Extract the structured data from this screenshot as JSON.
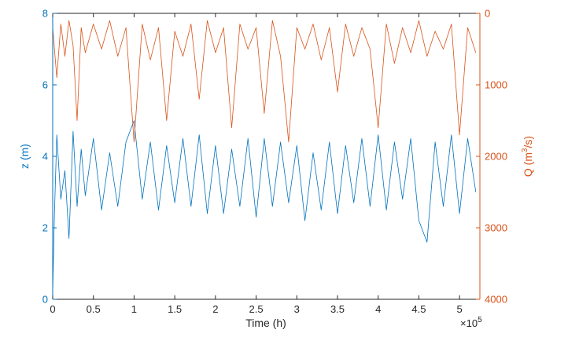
{
  "chart_data": {
    "type": "line",
    "xlabel": "Time (h)",
    "x_exponent_label": "×10",
    "x_exponent_power": "5",
    "xlim": [
      0,
      5.25
    ],
    "x_ticks": [
      0,
      0.5,
      1,
      1.5,
      2,
      2.5,
      3,
      3.5,
      4,
      4.5,
      5
    ],
    "x_tick_labels": [
      "0",
      "0.5",
      "1",
      "1.5",
      "2",
      "2.5",
      "3",
      "3.5",
      "4",
      "4.5",
      "5"
    ],
    "left_axis": {
      "label_main": "z (m)",
      "ylim": [
        0,
        8
      ],
      "ticks": [
        0,
        2,
        4,
        6,
        8
      ],
      "tick_labels": [
        "0",
        "2",
        "4",
        "6",
        "8"
      ],
      "color": "#0072BD"
    },
    "right_axis": {
      "label_pre": "Q (m",
      "label_sup": "3",
      "label_post": "/s)",
      "ylim": [
        0,
        4000
      ],
      "reversed": true,
      "ticks": [
        0,
        1000,
        2000,
        3000,
        4000
      ],
      "tick_labels": [
        "0",
        "1000",
        "2000",
        "3000",
        "4000"
      ],
      "color": "#D95319"
    },
    "series": [
      {
        "axis": "left",
        "color": "#0072BD",
        "x": [
          0,
          0.02,
          0.05,
          0.1,
          0.15,
          0.2,
          0.25,
          0.3,
          0.35,
          0.4,
          0.5,
          0.6,
          0.7,
          0.8,
          0.9,
          1.0,
          1.1,
          1.2,
          1.3,
          1.4,
          1.5,
          1.6,
          1.7,
          1.8,
          1.9,
          2.0,
          2.1,
          2.2,
          2.3,
          2.4,
          2.5,
          2.6,
          2.7,
          2.8,
          2.9,
          3.0,
          3.1,
          3.2,
          3.3,
          3.4,
          3.5,
          3.6,
          3.7,
          3.8,
          3.9,
          4.0,
          4.1,
          4.2,
          4.3,
          4.4,
          4.5,
          4.6,
          4.7,
          4.8,
          4.9,
          5.0,
          5.1,
          5.2
        ],
        "y": [
          0.2,
          2.3,
          4.6,
          2.8,
          3.6,
          1.7,
          4.7,
          2.6,
          4.2,
          2.9,
          4.5,
          2.5,
          4.1,
          2.6,
          4.4,
          5.0,
          2.8,
          4.4,
          2.5,
          4.3,
          2.7,
          4.5,
          2.6,
          4.6,
          2.4,
          4.3,
          2.4,
          4.2,
          2.6,
          4.5,
          2.3,
          4.5,
          2.6,
          4.4,
          2.7,
          4.3,
          2.2,
          4.1,
          2.5,
          4.4,
          2.4,
          4.3,
          2.7,
          4.5,
          2.6,
          4.6,
          2.5,
          4.4,
          2.8,
          4.5,
          2.2,
          1.6,
          4.4,
          2.6,
          4.6,
          2.4,
          4.5,
          3.0
        ]
      },
      {
        "axis": "right",
        "color": "#D95319",
        "x": [
          0,
          0.05,
          0.1,
          0.15,
          0.2,
          0.25,
          0.3,
          0.35,
          0.4,
          0.5,
          0.6,
          0.7,
          0.8,
          0.9,
          1.0,
          1.1,
          1.2,
          1.3,
          1.4,
          1.5,
          1.6,
          1.7,
          1.8,
          1.9,
          2.0,
          2.1,
          2.2,
          2.3,
          2.4,
          2.5,
          2.6,
          2.7,
          2.8,
          2.9,
          3.0,
          3.1,
          3.2,
          3.3,
          3.4,
          3.5,
          3.6,
          3.7,
          3.8,
          3.9,
          4.0,
          4.1,
          4.2,
          4.3,
          4.4,
          4.5,
          4.6,
          4.7,
          4.8,
          4.9,
          5.0,
          5.1,
          5.2
        ],
        "y": [
          200,
          900,
          150,
          600,
          100,
          450,
          1500,
          200,
          550,
          150,
          500,
          100,
          600,
          200,
          1800,
          150,
          650,
          200,
          1500,
          250,
          600,
          150,
          1200,
          100,
          550,
          200,
          1600,
          150,
          500,
          200,
          1400,
          100,
          600,
          1800,
          200,
          500,
          150,
          650,
          200,
          1100,
          150,
          600,
          200,
          500,
          1600,
          150,
          700,
          200,
          550,
          100,
          600,
          250,
          500,
          150,
          1700,
          200,
          550
        ]
      }
    ]
  }
}
